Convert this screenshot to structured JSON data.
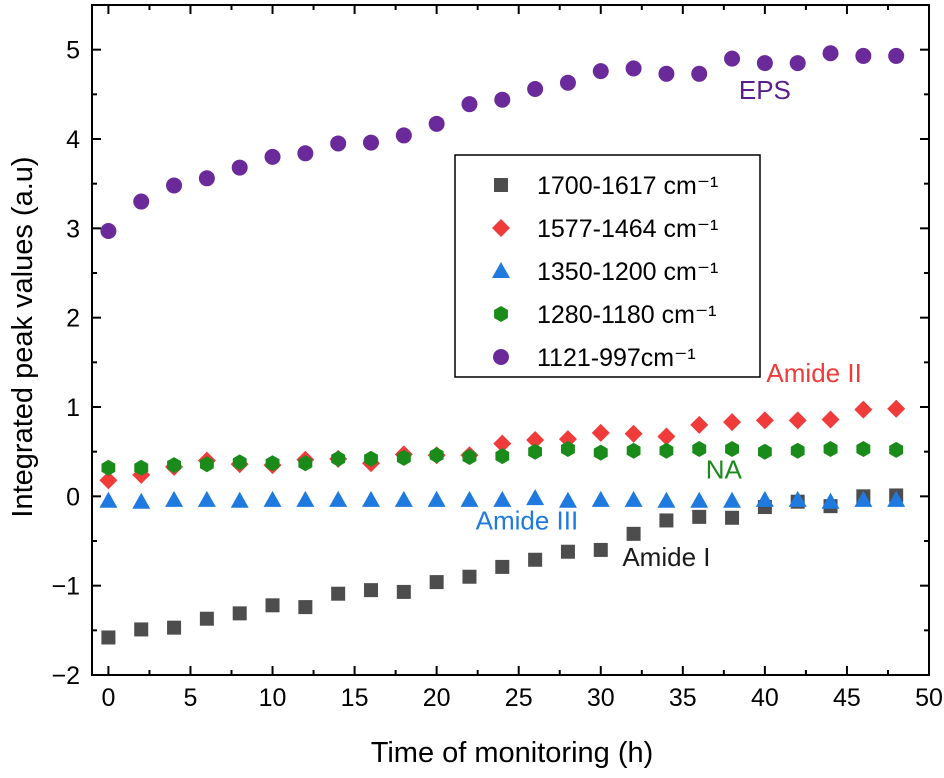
{
  "chart_data": {
    "type": "scatter",
    "title": "",
    "xlabel": "Time of monitoring (h)",
    "ylabel": "Integrated peak values (a.u)",
    "xlim": [
      -1,
      50
    ],
    "ylim": [
      -2,
      5.5
    ],
    "x_ticks": [
      0,
      5,
      10,
      15,
      20,
      25,
      30,
      35,
      40,
      45,
      50
    ],
    "y_ticks": [
      -2,
      -1,
      0,
      1,
      2,
      3,
      4,
      5
    ],
    "x_tick_labels": [
      "0",
      "5",
      "10",
      "15",
      "20",
      "25",
      "30",
      "35",
      "40",
      "45",
      "50"
    ],
    "y_tick_labels": [
      "−2",
      "−1",
      "0",
      "1",
      "2",
      "3",
      "4",
      "5"
    ],
    "grid": false,
    "legend_position": "center",
    "x": [
      0,
      2,
      4,
      6,
      8,
      10,
      12,
      14,
      16,
      18,
      20,
      22,
      24,
      26,
      28,
      30,
      32,
      34,
      36,
      38,
      40,
      42,
      44,
      46,
      48
    ],
    "series": [
      {
        "name": "1700-1617 cm⁻¹",
        "marker": "square",
        "color": "#4d4d4d",
        "values": [
          -1.58,
          -1.49,
          -1.47,
          -1.37,
          -1.31,
          -1.22,
          -1.24,
          -1.09,
          -1.05,
          -1.07,
          -0.96,
          -0.9,
          -0.79,
          -0.71,
          -0.62,
          -0.6,
          -0.42,
          -0.27,
          -0.23,
          -0.24,
          -0.12,
          -0.06,
          -0.11,
          0.0,
          0.01
        ]
      },
      {
        "name": "1577-1464 cm⁻¹",
        "marker": "diamond",
        "color": "#f03b3b",
        "values": [
          0.18,
          0.24,
          0.33,
          0.4,
          0.36,
          0.35,
          0.41,
          0.42,
          0.37,
          0.47,
          0.46,
          0.46,
          0.59,
          0.63,
          0.64,
          0.71,
          0.7,
          0.67,
          0.8,
          0.83,
          0.85,
          0.85,
          0.86,
          0.97,
          0.98
        ]
      },
      {
        "name": "1350-1200 cm⁻¹",
        "marker": "triangle",
        "color": "#1f7ae0",
        "values": [
          -0.05,
          -0.06,
          -0.04,
          -0.04,
          -0.05,
          -0.04,
          -0.04,
          -0.04,
          -0.04,
          -0.04,
          -0.04,
          -0.04,
          -0.04,
          -0.02,
          -0.05,
          -0.04,
          -0.04,
          -0.05,
          -0.05,
          -0.05,
          -0.04,
          -0.04,
          -0.06,
          -0.04,
          -0.04
        ]
      },
      {
        "name": "1280-1180 cm⁻¹",
        "marker": "hexagon",
        "color": "#1a8a1a",
        "values": [
          0.32,
          0.32,
          0.35,
          0.36,
          0.38,
          0.37,
          0.37,
          0.42,
          0.42,
          0.43,
          0.46,
          0.44,
          0.45,
          0.5,
          0.53,
          0.49,
          0.51,
          0.51,
          0.53,
          0.53,
          0.5,
          0.51,
          0.53,
          0.53,
          0.52
        ]
      },
      {
        "name": "1121-997cm⁻¹",
        "marker": "circle",
        "color": "#6a2a9a",
        "values": [
          2.97,
          3.3,
          3.48,
          3.56,
          3.68,
          3.8,
          3.84,
          3.95,
          3.96,
          4.04,
          4.17,
          4.39,
          4.44,
          4.56,
          4.63,
          4.76,
          4.79,
          4.73,
          4.73,
          4.9,
          4.85,
          4.85,
          4.96,
          4.93,
          4.93
        ]
      }
    ],
    "annotations": [
      {
        "text": "EPS",
        "color": "#5a1e8c",
        "x": 40.0,
        "y": 4.45
      },
      {
        "text": "Amide II",
        "color": "#f03b3b",
        "x": 43.0,
        "y": 1.28
      },
      {
        "text": "NA",
        "color": "#1a8a1a",
        "x": 37.5,
        "y": 0.2
      },
      {
        "text": "Amide III",
        "color": "#1f7ae0",
        "x": 25.5,
        "y": -0.37
      },
      {
        "text": "Amide I",
        "color": "#1a1a1a",
        "x": 34.0,
        "y": -0.78
      }
    ]
  }
}
